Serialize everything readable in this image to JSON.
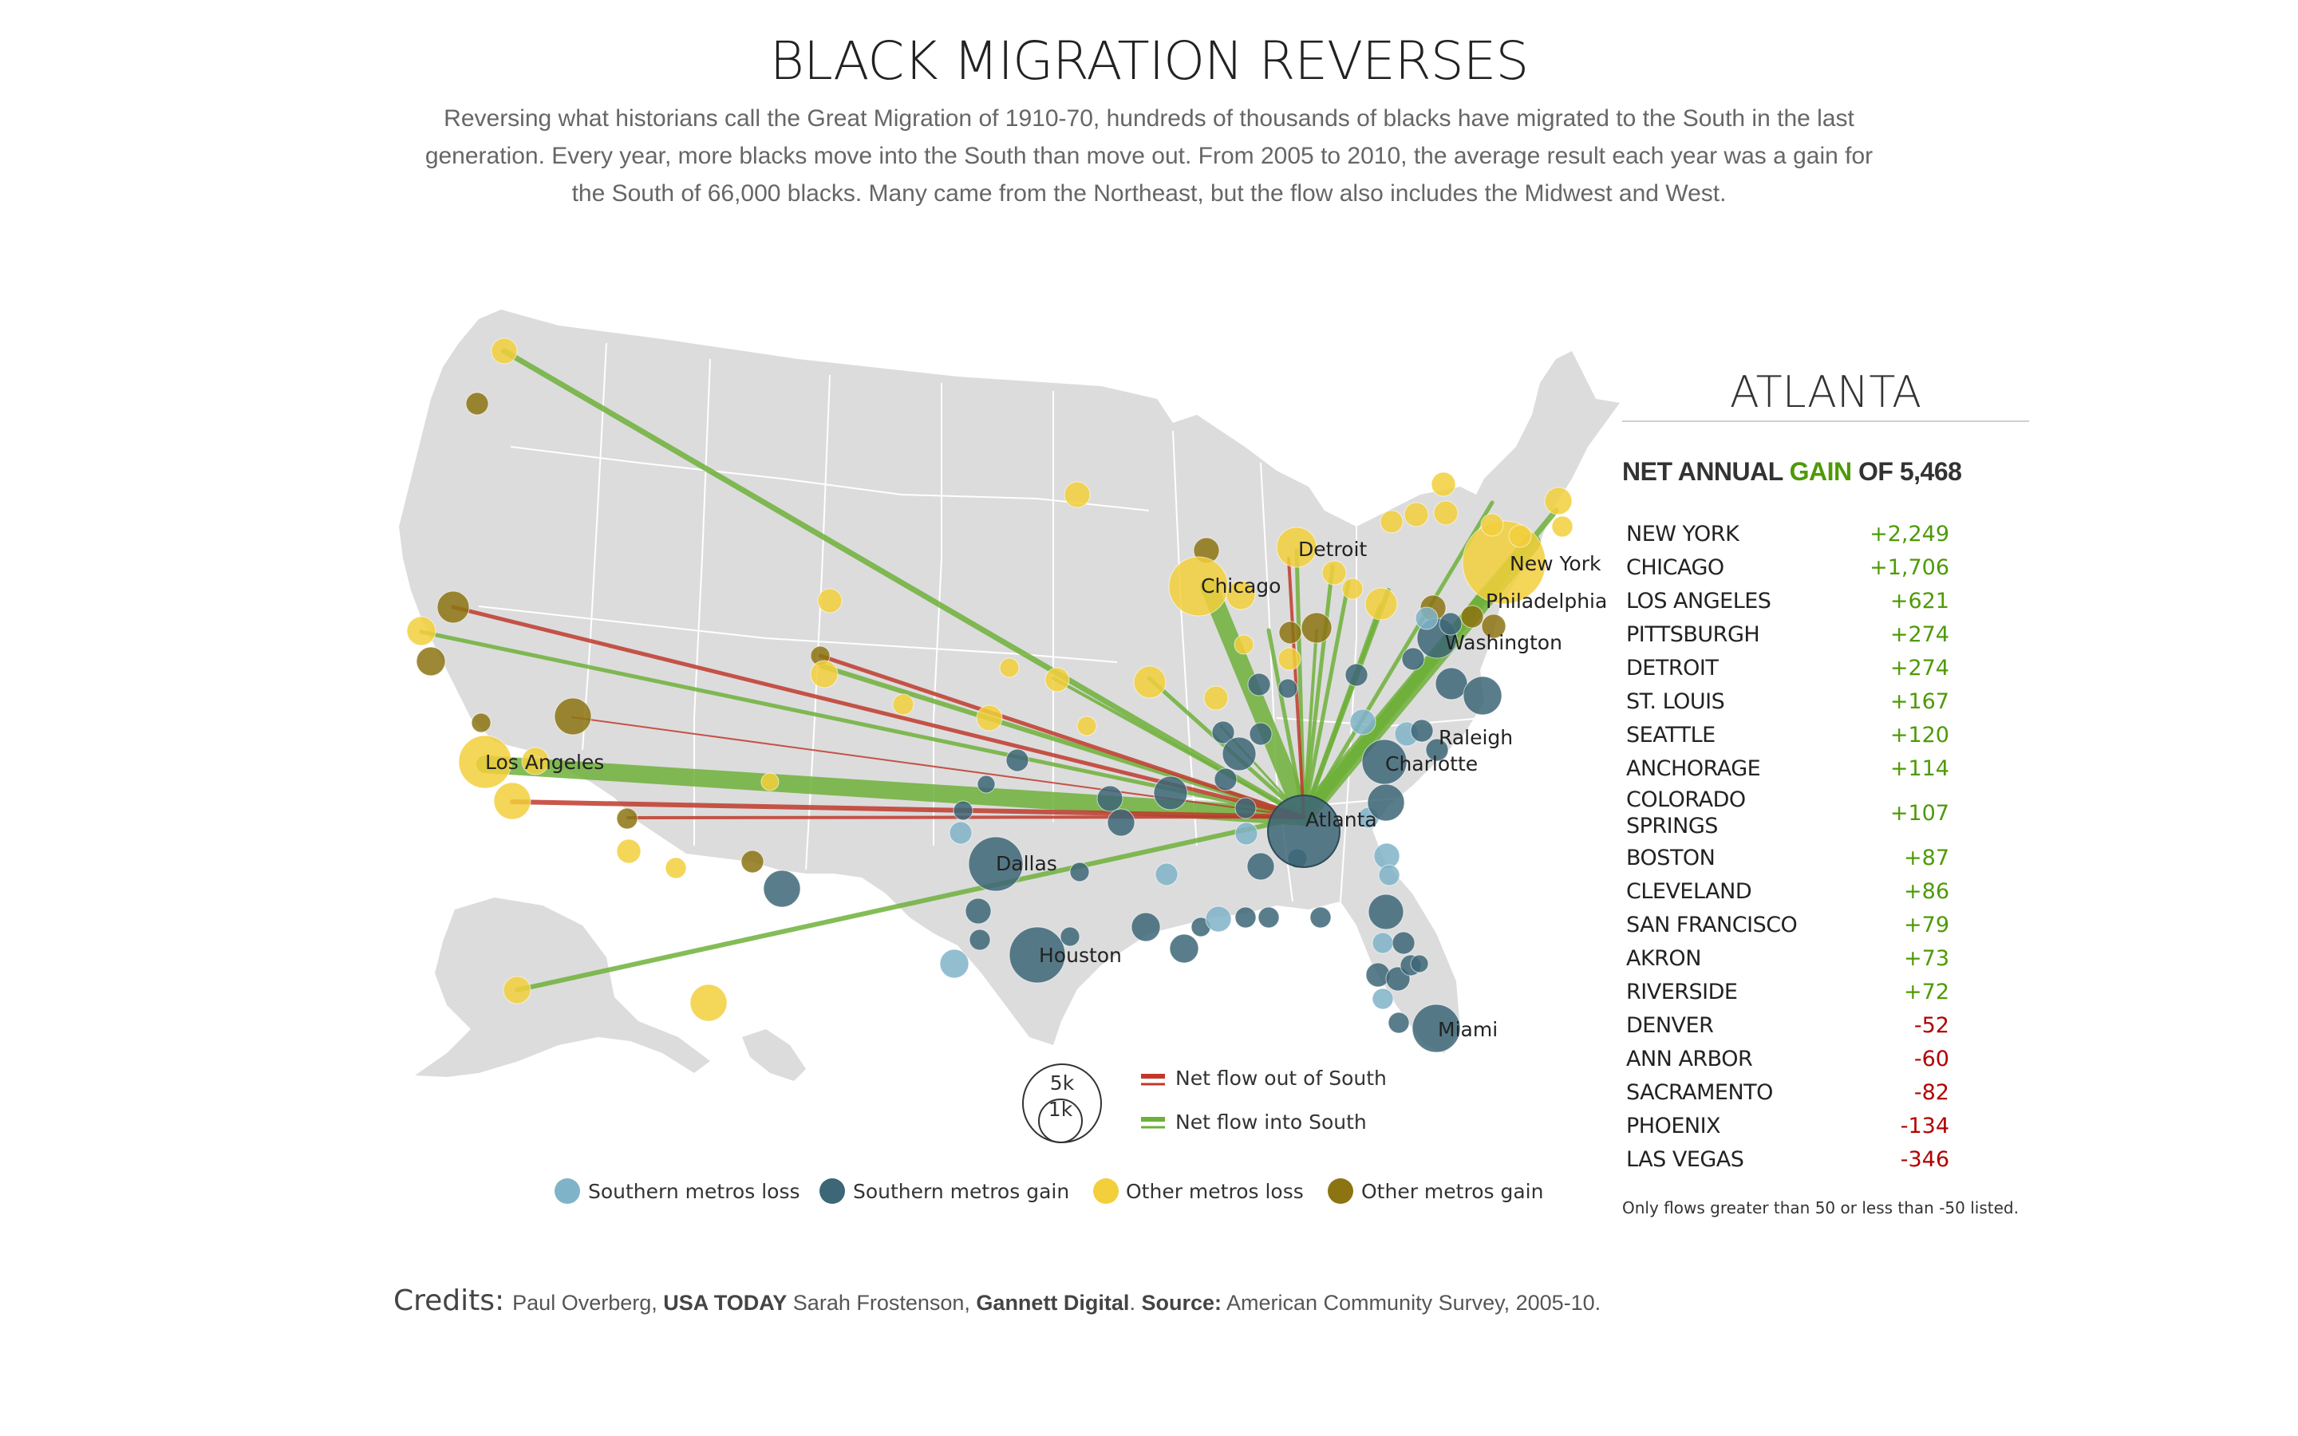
{
  "title": "BLACK MIGRATION REVERSES",
  "intro": "Reversing what historians call the Great Migration of 1910-70, hundreds of thousands of blacks have migrated to the South in the last generation. Every year, more blacks move into the South than move out. From 2005 to 2010, the average result each year was a gain for the South of 66,000 blacks. Many came from the Northeast, but the flow also includes the Midwest and West.",
  "map": {
    "labels": {
      "atlanta": "Atlanta",
      "detroit": "Detroit",
      "chicago": "Chicago",
      "new_york": "New York",
      "philadelphia": "Philadelphia",
      "washington": "Washington",
      "raleigh": "Raleigh",
      "charlotte": "Charlotte",
      "los_angeles": "Los Angeles",
      "dallas": "Dallas",
      "houston": "Houston",
      "miami": "Miami"
    },
    "colors": {
      "southern_loss": "#7fb3c8",
      "southern_gain": "#3d6677",
      "other_loss": "#f2cf3b",
      "other_gain": "#8c7412",
      "flow_out": "#c0392b",
      "flow_in": "#6fb03a",
      "land": "#dcdcdc"
    }
  },
  "legend": {
    "size_large": "5k",
    "size_small": "1k",
    "flow_out": "Net flow out of South",
    "flow_in": "Net flow into South",
    "southern_loss": "Southern metros loss",
    "southern_gain": "Southern metros gain",
    "other_loss": "Other metros loss",
    "other_gain": "Other metros gain"
  },
  "panel": {
    "city": "ATLANTA",
    "headline_pre": "NET ANNUAL ",
    "headline_gain": "GAIN",
    "headline_post": " OF 5,468",
    "flows": [
      {
        "name": "NEW YORK",
        "value": "+2,249"
      },
      {
        "name": "CHICAGO",
        "value": "+1,706"
      },
      {
        "name": "LOS ANGELES",
        "value": "+621"
      },
      {
        "name": "PITTSBURGH",
        "value": "+274"
      },
      {
        "name": "DETROIT",
        "value": "+274"
      },
      {
        "name": "ST. LOUIS",
        "value": "+167"
      },
      {
        "name": "SEATTLE",
        "value": "+120"
      },
      {
        "name": "ANCHORAGE",
        "value": "+114"
      },
      {
        "name": "COLORADO SPRINGS",
        "value": "+107"
      },
      {
        "name": "BOSTON",
        "value": "+87"
      },
      {
        "name": "CLEVELAND",
        "value": "+86"
      },
      {
        "name": "SAN FRANCISCO",
        "value": "+79"
      },
      {
        "name": "AKRON",
        "value": "+73"
      },
      {
        "name": "RIVERSIDE",
        "value": "+72"
      },
      {
        "name": "DENVER",
        "value": "-52"
      },
      {
        "name": "ANN ARBOR",
        "value": "-60"
      },
      {
        "name": "SACRAMENTO",
        "value": "-82"
      },
      {
        "name": "PHOENIX",
        "value": "-134"
      },
      {
        "name": "LAS VEGAS",
        "value": "-346"
      }
    ],
    "note": "Only flows greater than 50 or less than -50 listed."
  },
  "credits": {
    "label": "Credits:",
    "name1": "Paul Overberg, ",
    "org1": "USA TODAY",
    "name2": " Sarah Frostenson, ",
    "org2": "Gannett Digital",
    "sep": ". ",
    "source_label": "Source:",
    "source": " American Community Survey, 2005-10."
  }
}
